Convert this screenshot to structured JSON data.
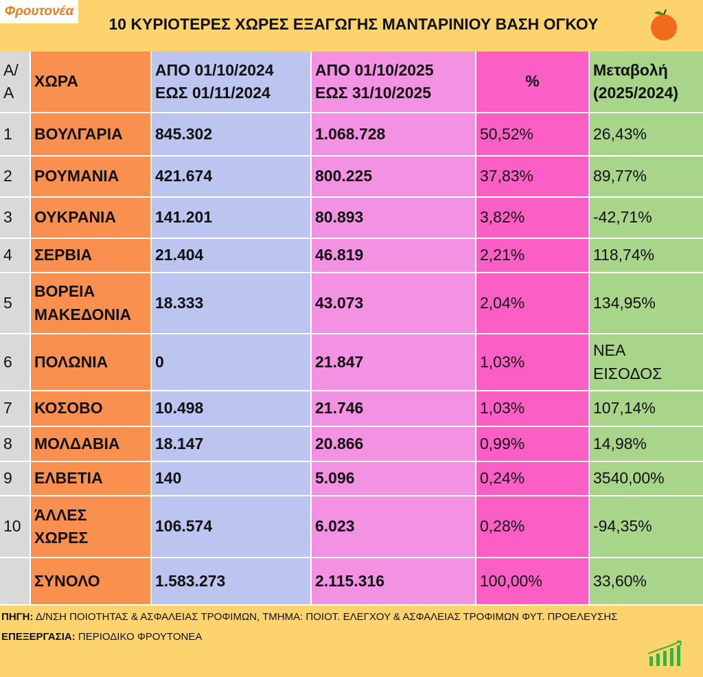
{
  "header": {
    "logo": "Φρουτονέα",
    "title": "10 ΚΥΡΙΟΤΕΡΕΣ ΧΩΡΕΣ ΕΞΑΓΩΓΗΣ ΜΑΝΤΑΡΙΝΙΟΥ ΒΑΣΗ ΟΓΚΟΥ"
  },
  "table": {
    "header": [
      [
        "Α/",
        "Α"
      ],
      [
        "ΧΩΡΑ"
      ],
      [
        "ΑΠΟ 01/10/2024",
        "ΕΩΣ  01/11/2024"
      ],
      [
        "ΑΠΟ 01/10/2025",
        "ΕΩΣ  31/10/2025"
      ],
      [
        "%"
      ],
      [
        "Μεταβολή",
        "(2025/2024)"
      ]
    ],
    "rows": [
      [
        [
          "1"
        ],
        [
          "ΒΟΥΛΓΑΡΙΑ"
        ],
        [
          "845.302"
        ],
        [
          "1.068.728"
        ],
        [
          "50,52%"
        ],
        [
          "26,43%"
        ]
      ],
      [
        [
          "2"
        ],
        [
          "ΡΟΥΜΑΝΙΑ"
        ],
        [
          "421.674"
        ],
        [
          "800.225"
        ],
        [
          "37,83%"
        ],
        [
          "89,77%"
        ]
      ],
      [
        [
          "3"
        ],
        [
          "ΟΥΚΡΑΝΙΑ"
        ],
        [
          "141.201"
        ],
        [
          "80.893"
        ],
        [
          "3,82%"
        ],
        [
          "-42,71%"
        ]
      ],
      [
        [
          "4"
        ],
        [
          "ΣΕΡΒΙΑ"
        ],
        [
          "21.404"
        ],
        [
          "46.819"
        ],
        [
          "2,21%"
        ],
        [
          "118,74%"
        ]
      ],
      [
        [
          "5"
        ],
        [
          "ΒΟΡΕΙΑ",
          "ΜΑΚΕΔΟΝΙΑ"
        ],
        [
          "18.333"
        ],
        [
          "43.073"
        ],
        [
          "2,04%"
        ],
        [
          "134,95%"
        ]
      ],
      [
        [
          "6"
        ],
        [
          "ΠΟΛΩΝΙΑ"
        ],
        [
          "0"
        ],
        [
          "21.847"
        ],
        [
          "1,03%"
        ],
        [
          "ΝΕΑ",
          "ΕΙΣΟΔΟΣ"
        ]
      ],
      [
        [
          "7"
        ],
        [
          "ΚΟΣΟΒΟ"
        ],
        [
          "10.498"
        ],
        [
          "21.746"
        ],
        [
          "1,03%"
        ],
        [
          "107,14%"
        ]
      ],
      [
        [
          "8"
        ],
        [
          "ΜΟΛΔΑΒΙΑ"
        ],
        [
          "18.147"
        ],
        [
          "20.866"
        ],
        [
          "0,99%"
        ],
        [
          "14,98%"
        ]
      ],
      [
        [
          "9"
        ],
        [
          "ΕΛΒΕΤΙΑ"
        ],
        [
          "140"
        ],
        [
          "5.096"
        ],
        [
          "0,24%"
        ],
        [
          "3540,00%"
        ]
      ],
      [
        [
          "10"
        ],
        [
          "ΆΛΛΕΣ",
          "ΧΩΡΕΣ"
        ],
        [
          "106.574"
        ],
        [
          "6.023"
        ],
        [
          "0,28%"
        ],
        [
          "-94,35%"
        ]
      ],
      [
        [],
        [
          "ΣΥΝΟΛΟ"
        ],
        [
          "1.583.273"
        ],
        [
          "2.115.316"
        ],
        [
          "100,00%"
        ],
        [
          "33,60%"
        ]
      ]
    ]
  },
  "footer": {
    "source_label": "ΠΗΓΗ:",
    "source": "Δ/ΝΣΗ ΠΟΙΟΤΗΤΑΣ & ΑΣΦΑΛΕΙΑΣ ΤΡΟΦΙΜΩΝ, ΤΜΗΜΑ: ΠΟΙΟΤ. ΕΛΕΓΧΟΥ & ΑΣΦΑΛΕΙΑΣ ΤΡΟΦΙΜΩΝ ΦΥΤ. ΠΡΟΕΛΕΥΣΗΣ",
    "processing_label": "ΕΠΕΞΕΡΓΑΣΙΑ:",
    "processing": "ΠΕΡΙΟΔΙΚΟ ΦΡΟΥΤΟΝΕΑ"
  }
}
